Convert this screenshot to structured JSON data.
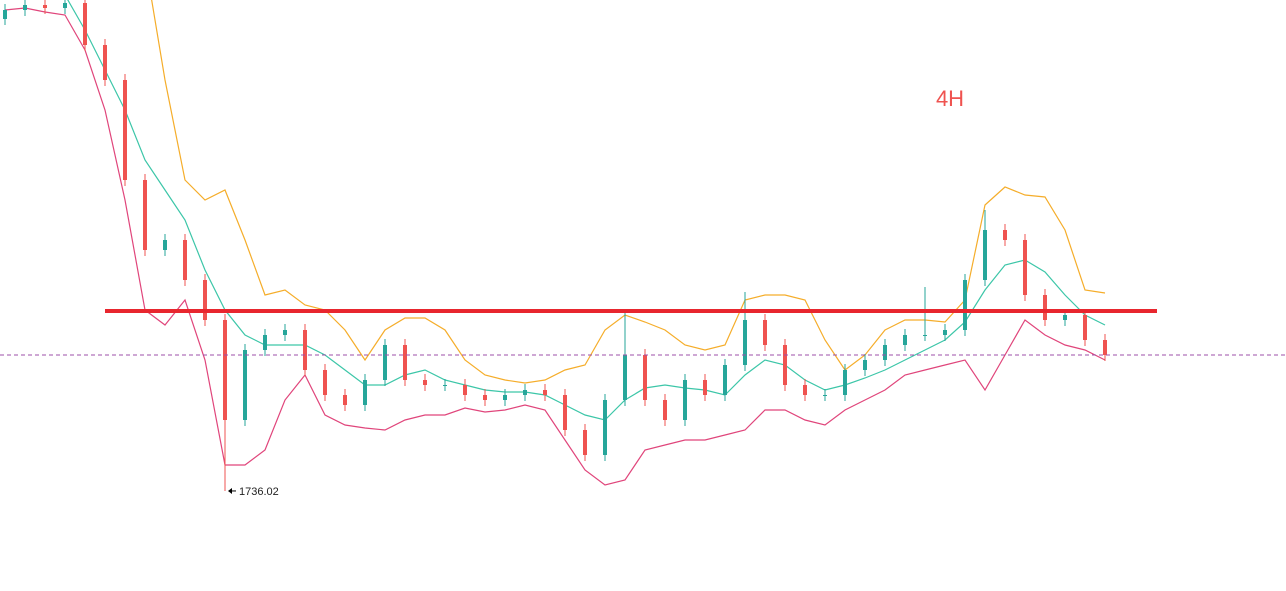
{
  "chart_data": {
    "type": "candlestick",
    "annotation": "4H",
    "up_color": "#26a69a",
    "down_color": "#ef5350",
    "ylim": [
      1686,
      1981.5
    ],
    "open": [
      1972,
      1976.5,
      1979,
      1977.5,
      1980,
      1959,
      1941.5,
      1891.5,
      1856.5,
      1861.5,
      1841.5,
      1821.5,
      1771.5,
      1806.5,
      1814,
      1816.5,
      1796.5,
      1784,
      1779,
      1791.5,
      1809,
      1791.5,
      1789,
      1789,
      1784,
      1781.5,
      1784,
      1786.5,
      1784,
      1766.5,
      1754,
      1781.5,
      1804,
      1781.5,
      1771.5,
      1791.5,
      1784,
      1799,
      1821.5,
      1809,
      1789,
      1784,
      1784,
      1796.5,
      1801.5,
      1809,
      1814,
      1814,
      1816.5,
      1841.5,
      1866.5,
      1861.5,
      1834,
      1821.5,
      1824,
      1811.5
    ],
    "high": [
      1979.5,
      1982,
      1982,
      1983,
      1983,
      1962,
      1944.5,
      1894.5,
      1864.5,
      1864.5,
      1844.5,
      1824.5,
      1809.5,
      1817,
      1819.5,
      1819.5,
      1799.5,
      1787,
      1794.5,
      1812,
      1812,
      1794.5,
      1792,
      1792,
      1787,
      1787,
      1789.5,
      1789.5,
      1787,
      1769.5,
      1784.5,
      1825,
      1807,
      1784.5,
      1794.5,
      1794.5,
      1802,
      1835.5,
      1824.5,
      1812,
      1792,
      1787,
      1799.5,
      1804.5,
      1812,
      1817,
      1838,
      1819.5,
      1844.5,
      1876.5,
      1869.5,
      1864.5,
      1837,
      1827,
      1827,
      1814.5
    ],
    "low": [
      1969,
      1973.5,
      1974.5,
      1974.5,
      1956,
      1938.5,
      1888.5,
      1853.5,
      1853.5,
      1838.5,
      1818.5,
      1736.02,
      1768.5,
      1803.5,
      1811,
      1793.5,
      1781,
      1776,
      1776,
      1788.5,
      1788.5,
      1786,
      1786,
      1781,
      1778.5,
      1778.5,
      1781,
      1781,
      1763.5,
      1751,
      1751,
      1778.5,
      1778.5,
      1768.5,
      1768.5,
      1781,
      1781,
      1796,
      1806,
      1786,
      1781,
      1781,
      1781,
      1793.5,
      1798.5,
      1806,
      1811,
      1811,
      1813.5,
      1838.5,
      1858.5,
      1831,
      1818.5,
      1818.5,
      1808.5,
      1801
    ],
    "close": [
      1976.5,
      1979,
      1977.5,
      1980,
      1959,
      1941.5,
      1891.5,
      1856.5,
      1861.5,
      1841.5,
      1821.5,
      1771.5,
      1806.5,
      1814,
      1816.5,
      1796.5,
      1784,
      1779,
      1791.5,
      1809,
      1791.5,
      1789,
      1789,
      1784,
      1781.5,
      1784,
      1786.5,
      1784,
      1766.5,
      1754,
      1781.5,
      1804,
      1781.5,
      1771.5,
      1791.5,
      1784,
      1799,
      1821.5,
      1809,
      1789,
      1784,
      1784,
      1796.5,
      1801.5,
      1809,
      1814,
      1814,
      1816.5,
      1841.5,
      1866.5,
      1861.5,
      1834,
      1821.5,
      1824,
      1811.5,
      1804
    ],
    "bands": [
      {
        "color": "#f5ad2a",
        "values": [
          null,
          null,
          null,
          null,
          null,
          null,
          null,
          2001.5,
          1941.5,
          1891.5,
          1881.5,
          1886.5,
          1861.5,
          1834,
          1836.5,
          1829,
          1826.5,
          1816.5,
          1801.5,
          1816.5,
          1822.5,
          1822.5,
          1816.5,
          1801.5,
          1794,
          1791.5,
          1790,
          1791.5,
          1796.5,
          1799,
          1816.5,
          1824,
          1820.5,
          1816.5,
          1809,
          1806.5,
          1809,
          1831.5,
          1834,
          1834,
          1831.5,
          1811.5,
          1796.5,
          1804,
          1816.5,
          1821.5,
          1821.5,
          1820.5,
          1831.5,
          1879,
          1888,
          1884,
          1883,
          1866.5,
          1836.5,
          1835
        ]
      },
      {
        "color": "#3cc6a8",
        "values": [
          1986.5,
          1986.5,
          1986.5,
          1984,
          1966.5,
          1946.5,
          1926.5,
          1901.5,
          1886.5,
          1871.5,
          1846.5,
          1826.5,
          1814,
          1809,
          1809,
          1809,
          1804,
          1796.5,
          1789,
          1789,
          1794,
          1796.5,
          1791.5,
          1789,
          1786.5,
          1785.5,
          1785.5,
          1784,
          1779,
          1774,
          1771.5,
          1781.5,
          1787.5,
          1789,
          1787.5,
          1786.5,
          1784,
          1794,
          1801.5,
          1799,
          1791.5,
          1786.5,
          1789,
          1792.5,
          1796.5,
          1801.5,
          1806.5,
          1811.5,
          1820.5,
          1836.5,
          1849,
          1851.5,
          1845.5,
          1834,
          1824,
          1819
        ]
      },
      {
        "color": "#e0457b",
        "values": [
          1976.5,
          1977.5,
          1975.5,
          1974,
          1956.5,
          1926.5,
          1881.5,
          1826.5,
          1819,
          1831.5,
          1801.5,
          1749,
          1749,
          1756.5,
          1781.5,
          1794,
          1774,
          1769,
          1767.5,
          1766.5,
          1771.5,
          1774,
          1774,
          1777.5,
          1775.5,
          1776.5,
          1779,
          1776.5,
          1761.5,
          1746.5,
          1739,
          1741.5,
          1756.5,
          1759,
          1761.5,
          1761.5,
          1764,
          1766.5,
          1776.5,
          1776.5,
          1771.5,
          1769,
          1776.5,
          1781.5,
          1786.5,
          1794,
          1796.5,
          1799,
          1801.5,
          1786.5,
          1804,
          1821.5,
          1814,
          1809,
          1806.5,
          1801.5
        ]
      }
    ],
    "level": {
      "value": 1826,
      "color": "#e8262e"
    }
  }
}
